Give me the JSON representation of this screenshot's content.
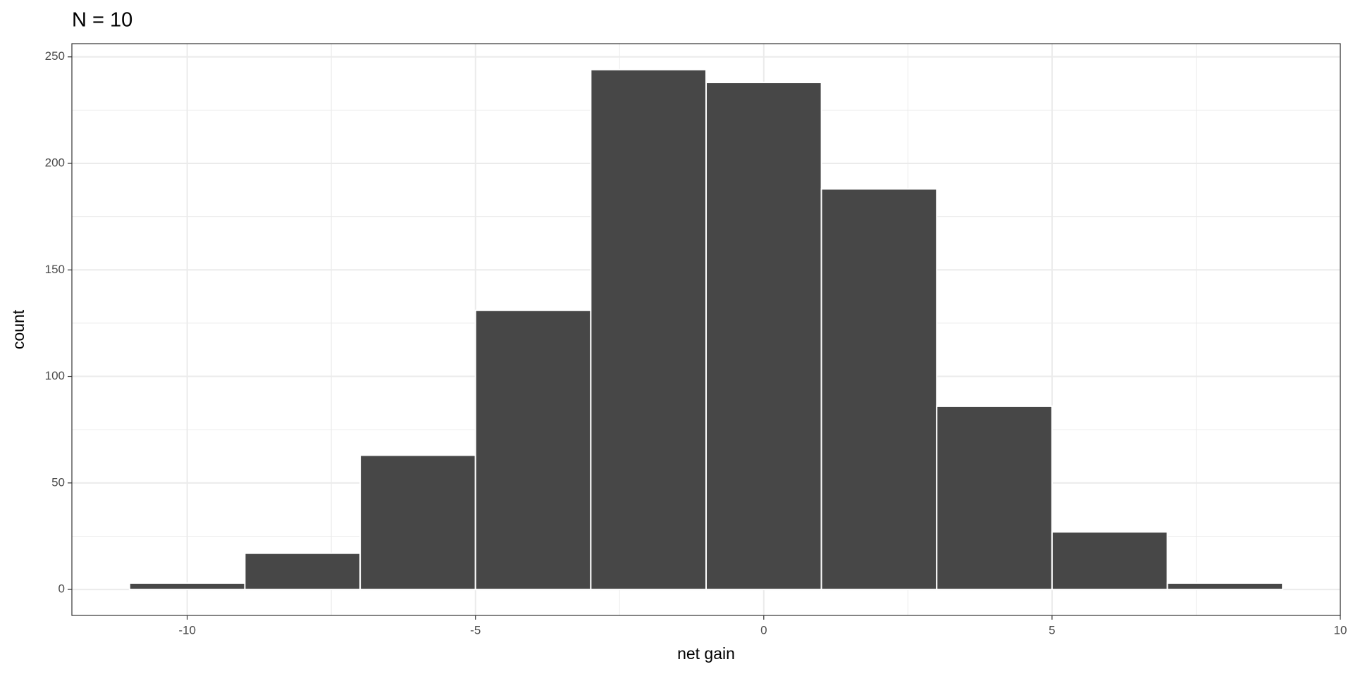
{
  "chart_data": {
    "type": "histogram",
    "title": "N = 10",
    "x_label": "net gain",
    "y_label": "count",
    "bins": [
      -11,
      -9,
      -7,
      -5,
      -3,
      -1,
      1,
      3,
      5,
      7,
      9
    ],
    "counts": [
      3,
      17,
      63,
      131,
      244,
      238,
      188,
      86,
      27,
      3
    ],
    "color": "#474747",
    "xlim": [
      -12,
      10
    ],
    "xticks": [
      -10,
      -5,
      0,
      5,
      10
    ],
    "ylim": [
      -12.2,
      256.2
    ],
    "yticks": [
      0,
      50,
      100,
      150,
      200,
      250
    ],
    "grid": true
  }
}
